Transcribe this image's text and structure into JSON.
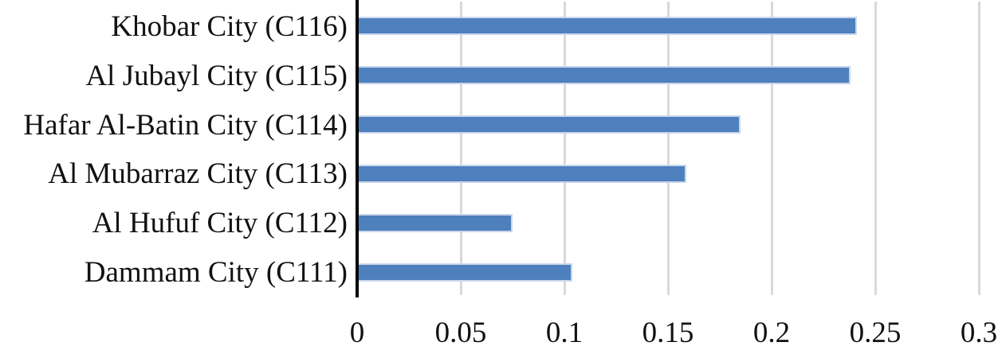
{
  "chart_data": {
    "type": "bar",
    "orientation": "horizontal",
    "title": "",
    "xlabel": "",
    "ylabel": "",
    "categories": [
      "Khobar City (C116)",
      "Al Jubayl City (C115)",
      "Hafar Al-Batin City (C114)",
      "Al Mubarraz City (C113)",
      "Al Hufuf City (C112)",
      "Dammam City (C111)"
    ],
    "values": [
      0.241,
      0.238,
      0.185,
      0.159,
      0.075,
      0.104
    ],
    "xlim": [
      0,
      0.3
    ],
    "x_ticks": [
      0,
      0.05,
      0.1,
      0.15,
      0.2,
      0.25,
      0.3
    ],
    "x_tick_labels": [
      "0",
      "0.05",
      "0.1",
      "0.15",
      "0.2",
      "0.25",
      "0.3"
    ],
    "grid": "vertical-only",
    "legend": "none",
    "colors": {
      "bar_fill": "#4E80BE",
      "bar_border": "#C9D7EB",
      "gridline": "#D9D9D9",
      "axis_line": "#000000",
      "text": "#111111",
      "background": "#FFFFFF"
    }
  }
}
